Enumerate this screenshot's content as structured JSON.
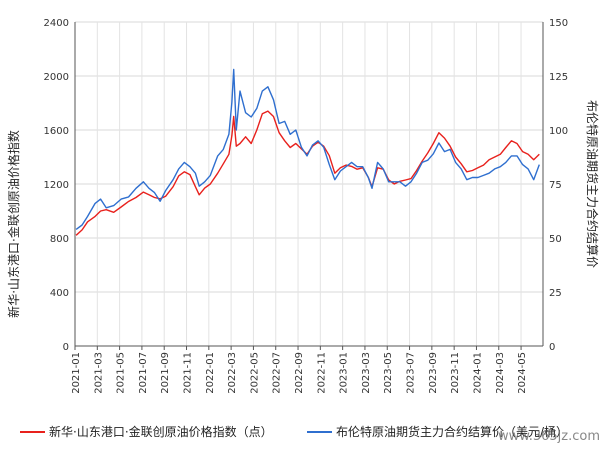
{
  "chart_data": {
    "type": "line",
    "dual_axis": true,
    "x_range": [
      "2021-01",
      "2024-06"
    ],
    "x_ticks": [
      "2021-01",
      "2021-03",
      "2021-05",
      "2021-07",
      "2021-09",
      "2021-11",
      "2022-01",
      "2022-03",
      "2022-05",
      "2022-07",
      "2022-09",
      "2022-11",
      "2023-01",
      "2023-03",
      "2023-05",
      "2023-07",
      "2023-09",
      "2023-11",
      "2024-01",
      "2024-03",
      "2024-05"
    ],
    "y_left": {
      "title": "新华·山东港口·金联创原油价格指数",
      "min": 0,
      "max": 2400,
      "ticks": [
        "0",
        "400",
        "800",
        "1200",
        "1600",
        "2000",
        "2400"
      ]
    },
    "y_right": {
      "title": "布伦特原油期货主力合约结算价",
      "min": 0,
      "max": 150,
      "ticks": [
        "0",
        "25",
        "50",
        "75",
        "100",
        "125",
        "150"
      ]
    },
    "series": [
      {
        "name": "新华·山东港口·金联创原油价格指数（点）",
        "axis": "left",
        "color": "#e8211d",
        "x": [
          "2021-01-04",
          "2021-01-20",
          "2021-02-05",
          "2021-02-25",
          "2021-03-10",
          "2021-03-25",
          "2021-04-15",
          "2021-05-05",
          "2021-05-25",
          "2021-06-15",
          "2021-07-05",
          "2021-07-20",
          "2021-08-05",
          "2021-08-20",
          "2021-09-05",
          "2021-09-25",
          "2021-10-10",
          "2021-10-25",
          "2021-11-10",
          "2021-11-25",
          "2021-12-05",
          "2021-12-20",
          "2022-01-05",
          "2022-01-25",
          "2022-02-10",
          "2022-02-25",
          "2022-03-03",
          "2022-03-08",
          "2022-03-15",
          "2022-03-25",
          "2022-04-10",
          "2022-04-25",
          "2022-05-10",
          "2022-05-25",
          "2022-06-10",
          "2022-06-25",
          "2022-07-10",
          "2022-07-25",
          "2022-08-10",
          "2022-08-25",
          "2022-09-10",
          "2022-09-25",
          "2022-10-10",
          "2022-10-25",
          "2022-11-10",
          "2022-11-25",
          "2022-12-10",
          "2022-12-25",
          "2023-01-10",
          "2023-01-25",
          "2023-02-10",
          "2023-02-25",
          "2023-03-10",
          "2023-03-20",
          "2023-04-05",
          "2023-04-20",
          "2023-05-05",
          "2023-05-20",
          "2023-06-05",
          "2023-06-20",
          "2023-07-05",
          "2023-07-20",
          "2023-08-05",
          "2023-08-20",
          "2023-09-05",
          "2023-09-20",
          "2023-10-05",
          "2023-10-20",
          "2023-11-05",
          "2023-11-20",
          "2023-12-05",
          "2023-12-20",
          "2024-01-05",
          "2024-01-20",
          "2024-02-05",
          "2024-02-20",
          "2024-03-05",
          "2024-03-20",
          "2024-04-05",
          "2024-04-20",
          "2024-05-05",
          "2024-05-20",
          "2024-06-05",
          "2024-06-20"
        ],
        "values": [
          820,
          860,
          920,
          960,
          1000,
          1010,
          990,
          1030,
          1070,
          1100,
          1140,
          1120,
          1100,
          1090,
          1110,
          1180,
          1260,
          1290,
          1270,
          1180,
          1120,
          1170,
          1200,
          1280,
          1350,
          1420,
          1560,
          1700,
          1480,
          1500,
          1550,
          1500,
          1600,
          1720,
          1740,
          1700,
          1580,
          1520,
          1470,
          1500,
          1460,
          1420,
          1480,
          1510,
          1480,
          1410,
          1280,
          1320,
          1340,
          1330,
          1310,
          1320,
          1250,
          1180,
          1320,
          1310,
          1230,
          1200,
          1220,
          1230,
          1240,
          1300,
          1370,
          1430,
          1500,
          1580,
          1540,
          1480,
          1400,
          1350,
          1290,
          1300,
          1320,
          1340,
          1380,
          1400,
          1420,
          1470,
          1520,
          1500,
          1440,
          1420,
          1380,
          1420
        ]
      },
      {
        "name": "布伦特原油期货主力合约结算价（美元/桶）",
        "axis": "right",
        "color": "#2f6fcf",
        "x": [
          "2021-01-04",
          "2021-01-20",
          "2021-02-05",
          "2021-02-25",
          "2021-03-10",
          "2021-03-25",
          "2021-04-15",
          "2021-05-05",
          "2021-05-25",
          "2021-06-15",
          "2021-07-05",
          "2021-07-20",
          "2021-08-05",
          "2021-08-20",
          "2021-09-05",
          "2021-09-25",
          "2021-10-10",
          "2021-10-25",
          "2021-11-10",
          "2021-11-25",
          "2021-12-05",
          "2021-12-20",
          "2022-01-05",
          "2022-01-25",
          "2022-02-10",
          "2022-02-25",
          "2022-03-03",
          "2022-03-08",
          "2022-03-15",
          "2022-03-25",
          "2022-04-10",
          "2022-04-25",
          "2022-05-10",
          "2022-05-25",
          "2022-06-10",
          "2022-06-25",
          "2022-07-10",
          "2022-07-25",
          "2022-08-10",
          "2022-08-25",
          "2022-09-10",
          "2022-09-25",
          "2022-10-10",
          "2022-10-25",
          "2022-11-10",
          "2022-11-25",
          "2022-12-10",
          "2022-12-25",
          "2023-01-10",
          "2023-01-25",
          "2023-02-10",
          "2023-02-25",
          "2023-03-10",
          "2023-03-20",
          "2023-04-05",
          "2023-04-20",
          "2023-05-05",
          "2023-05-20",
          "2023-06-05",
          "2023-06-20",
          "2023-07-05",
          "2023-07-20",
          "2023-08-05",
          "2023-08-20",
          "2023-09-05",
          "2023-09-20",
          "2023-10-05",
          "2023-10-20",
          "2023-11-05",
          "2023-11-20",
          "2023-12-05",
          "2023-12-20",
          "2024-01-05",
          "2024-01-20",
          "2024-02-05",
          "2024-02-20",
          "2024-03-05",
          "2024-03-20",
          "2024-04-05",
          "2024-04-20",
          "2024-05-05",
          "2024-05-20",
          "2024-06-05",
          "2024-06-20"
        ],
        "values": [
          54,
          56,
          60,
          66,
          68,
          64,
          65,
          68,
          69,
          73,
          76,
          73,
          71,
          67,
          72,
          77,
          82,
          85,
          83,
          80,
          74,
          76,
          79,
          88,
          91,
          98,
          113,
          128,
          100,
          118,
          108,
          106,
          110,
          118,
          120,
          114,
          103,
          104,
          98,
          100,
          92,
          88,
          93,
          95,
          92,
          84,
          77,
          81,
          83,
          85,
          83,
          83,
          78,
          73,
          85,
          82,
          76,
          76,
          76,
          74,
          76,
          80,
          85,
          86,
          89,
          94,
          90,
          91,
          85,
          82,
          77,
          78,
          78,
          79,
          80,
          82,
          83,
          85,
          88,
          88,
          84,
          82,
          77,
          84
        ]
      }
    ],
    "legend": {
      "position": "bottom"
    },
    "watermark": "www.365jz.com"
  }
}
